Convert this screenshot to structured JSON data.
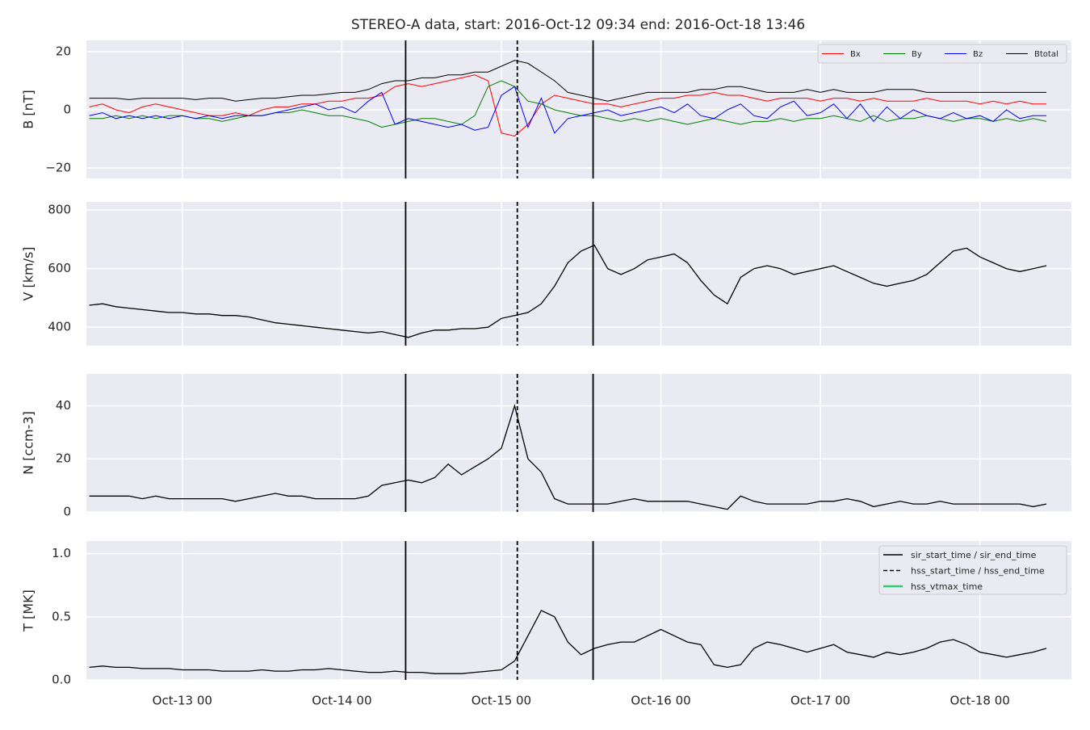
{
  "chart_data": [
    {
      "type": "line",
      "title": "STEREO-A data, start: 2016-Oct-12 09:34  end: 2016-Oct-18 13:46",
      "ylabel": "B [nT]",
      "ylim": [
        -23.6,
        23.9
      ],
      "yticks": [
        {
          "value": -20,
          "label": "−20"
        },
        0,
        20
      ],
      "grid": true,
      "legend": "upper right",
      "series": [
        {
          "name": "Bx",
          "color": "#ff0000",
          "values": [
            1,
            2,
            0,
            -1,
            1,
            2,
            1,
            0,
            -1,
            -2,
            -2,
            -1,
            -2,
            0,
            1,
            1,
            2,
            2,
            3,
            3,
            4,
            4,
            5,
            8,
            9,
            8,
            9,
            10,
            11,
            12,
            10,
            -8,
            -9,
            -5,
            2,
            5,
            4,
            3,
            2,
            2,
            1,
            2,
            3,
            4,
            4,
            5,
            5,
            6,
            5,
            5,
            4,
            3,
            4,
            4,
            4,
            3,
            4,
            4,
            3,
            4,
            3,
            3,
            3,
            4,
            3,
            3,
            3,
            2,
            3,
            2,
            3,
            2,
            2
          ]
        },
        {
          "name": "By",
          "color": "#008000",
          "values": [
            -3,
            -3,
            -2,
            -3,
            -2,
            -3,
            -2,
            -2,
            -3,
            -3,
            -4,
            -3,
            -2,
            -2,
            -1,
            -1,
            0,
            -1,
            -2,
            -2,
            -3,
            -4,
            -6,
            -5,
            -4,
            -3,
            -3,
            -4,
            -5,
            -2,
            8,
            10,
            8,
            3,
            2,
            0,
            -1,
            -2,
            -2,
            -3,
            -4,
            -3,
            -4,
            -3,
            -4,
            -5,
            -4,
            -3,
            -4,
            -5,
            -4,
            -4,
            -3,
            -4,
            -3,
            -3,
            -2,
            -3,
            -4,
            -2,
            -4,
            -3,
            -3,
            -2,
            -3,
            -4,
            -3,
            -3,
            -4,
            -3,
            -4,
            -3,
            -4
          ]
        },
        {
          "name": "Bz",
          "color": "#0000ff",
          "values": [
            -2,
            -1,
            -3,
            -2,
            -3,
            -2,
            -3,
            -2,
            -3,
            -2,
            -3,
            -2,
            -2,
            -2,
            -1,
            0,
            1,
            2,
            0,
            1,
            -1,
            3,
            6,
            -5,
            -3,
            -4,
            -5,
            -6,
            -5,
            -7,
            -6,
            5,
            8,
            -6,
            4,
            -8,
            -3,
            -2,
            -1,
            0,
            -2,
            -1,
            0,
            1,
            -1,
            2,
            -2,
            -3,
            0,
            2,
            -2,
            -3,
            1,
            3,
            -2,
            -1,
            2,
            -3,
            2,
            -4,
            1,
            -3,
            0,
            -2,
            -3,
            -1,
            -3,
            -2,
            -4,
            0,
            -3,
            -2,
            -2
          ]
        },
        {
          "name": "Btotal",
          "color": "#000000",
          "values": [
            4,
            4,
            4,
            3.5,
            4,
            4,
            4,
            4,
            3.5,
            4,
            4,
            3,
            3.5,
            4,
            4,
            4.5,
            5,
            5,
            5.5,
            6,
            6,
            7,
            9,
            10,
            10,
            11,
            11,
            12,
            12,
            13,
            13,
            15,
            17,
            16,
            13,
            10,
            6,
            5,
            4,
            3,
            4,
            5,
            6,
            6,
            6,
            6,
            7,
            7,
            8,
            8,
            7,
            6,
            6,
            6,
            7,
            6,
            7,
            6,
            6,
            6,
            7,
            7,
            7,
            6,
            6,
            6,
            6,
            6,
            6,
            6,
            6,
            6,
            6
          ]
        }
      ]
    },
    {
      "type": "line",
      "ylabel": "V [km/s]",
      "ylim": [
        337,
        828
      ],
      "yticks": [
        400,
        600,
        800
      ],
      "grid": true,
      "color": "#000000",
      "values": [
        475,
        480,
        470,
        465,
        460,
        455,
        450,
        450,
        445,
        445,
        440,
        440,
        435,
        425,
        415,
        410,
        405,
        400,
        395,
        390,
        385,
        380,
        385,
        375,
        365,
        380,
        390,
        390,
        395,
        395,
        400,
        430,
        440,
        450,
        480,
        540,
        620,
        660,
        680,
        600,
        580,
        600,
        630,
        640,
        650,
        620,
        560,
        510,
        480,
        570,
        600,
        610,
        600,
        580,
        590,
        600,
        610,
        590,
        570,
        550,
        540,
        550,
        560,
        580,
        620,
        660,
        670,
        640,
        620,
        600,
        590,
        600,
        610
      ]
    },
    {
      "type": "line",
      "ylabel": "N [ccm-3]",
      "ylim": [
        0,
        52
      ],
      "yticks": [
        0,
        20,
        40
      ],
      "grid": true,
      "color": "#000000",
      "values": [
        6,
        6,
        6,
        6,
        5,
        6,
        5,
        5,
        5,
        5,
        5,
        4,
        5,
        6,
        7,
        6,
        6,
        5,
        5,
        5,
        5,
        6,
        10,
        11,
        12,
        11,
        13,
        18,
        14,
        17,
        20,
        24,
        40,
        20,
        15,
        5,
        3,
        3,
        3,
        3,
        4,
        5,
        4,
        4,
        4,
        4,
        3,
        2,
        1,
        6,
        4,
        3,
        3,
        3,
        3,
        4,
        4,
        5,
        4,
        2,
        3,
        4,
        3,
        3,
        4,
        3,
        3,
        3,
        3,
        3,
        3,
        2,
        3
      ]
    },
    {
      "type": "line",
      "ylabel": "T [MK]",
      "ylim": [
        0,
        1.1
      ],
      "yticks": [
        {
          "value": 0,
          "label": "0.0"
        },
        0.5,
        {
          "value": 1,
          "label": "1.0"
        }
      ],
      "grid": true,
      "color": "#000000",
      "legend": "upper right",
      "values": [
        0.1,
        0.11,
        0.1,
        0.1,
        0.09,
        0.09,
        0.09,
        0.08,
        0.08,
        0.08,
        0.07,
        0.07,
        0.07,
        0.08,
        0.07,
        0.07,
        0.08,
        0.08,
        0.09,
        0.08,
        0.07,
        0.06,
        0.06,
        0.07,
        0.06,
        0.06,
        0.05,
        0.05,
        0.05,
        0.06,
        0.07,
        0.08,
        0.15,
        0.35,
        0.55,
        0.5,
        0.3,
        0.2,
        0.25,
        0.28,
        0.3,
        0.3,
        0.35,
        0.4,
        0.35,
        0.3,
        0.28,
        0.12,
        0.1,
        0.12,
        0.25,
        0.3,
        0.28,
        0.25,
        0.22,
        0.25,
        0.28,
        0.22,
        0.2,
        0.18,
        0.22,
        0.2,
        0.22,
        0.25,
        0.3,
        0.32,
        0.28,
        0.22,
        0.2,
        0.18,
        0.2,
        0.22,
        0.25
      ],
      "xlim": [
        "2016-10-12T09:34",
        "2016-10-18T13:46"
      ],
      "xticks": [
        {
          "value": "2016-10-13T00:00",
          "label": "Oct-13 00"
        },
        {
          "value": "2016-10-14T00:00",
          "label": "Oct-14 00"
        },
        {
          "value": "2016-10-15T00:00",
          "label": "Oct-15 00"
        },
        {
          "value": "2016-10-16T00:00",
          "label": "Oct-16 00"
        },
        {
          "value": "2016-10-17T00:00",
          "label": "Oct-17 00"
        },
        {
          "value": "2016-10-18T00:00",
          "label": "Oct-18 00"
        }
      ],
      "x": [
        "2016-10-12T10:00",
        "2016-10-12T12:00",
        "2016-10-12T14:00",
        "2016-10-12T16:00",
        "2016-10-12T18:00",
        "2016-10-12T20:00",
        "2016-10-12T22:00",
        "2016-10-13T00:00",
        "2016-10-13T02:00",
        "2016-10-13T04:00",
        "2016-10-13T06:00",
        "2016-10-13T08:00",
        "2016-10-13T10:00",
        "2016-10-13T12:00",
        "2016-10-13T14:00",
        "2016-10-13T16:00",
        "2016-10-13T18:00",
        "2016-10-13T20:00",
        "2016-10-13T22:00",
        "2016-10-14T00:00",
        "2016-10-14T02:00",
        "2016-10-14T04:00",
        "2016-10-14T06:00",
        "2016-10-14T08:00",
        "2016-10-14T10:00",
        "2016-10-14T12:00",
        "2016-10-14T14:00",
        "2016-10-14T16:00",
        "2016-10-14T18:00",
        "2016-10-14T20:00",
        "2016-10-14T22:00",
        "2016-10-15T00:00",
        "2016-10-15T02:00",
        "2016-10-15T04:00",
        "2016-10-15T06:00",
        "2016-10-15T08:00",
        "2016-10-15T10:00",
        "2016-10-15T12:00",
        "2016-10-15T14:00",
        "2016-10-15T16:00",
        "2016-10-15T18:00",
        "2016-10-15T20:00",
        "2016-10-15T22:00",
        "2016-10-16T00:00",
        "2016-10-16T02:00",
        "2016-10-16T04:00",
        "2016-10-16T06:00",
        "2016-10-16T08:00",
        "2016-10-16T10:00",
        "2016-10-16T12:00",
        "2016-10-16T14:00",
        "2016-10-16T16:00",
        "2016-10-16T18:00",
        "2016-10-16T20:00",
        "2016-10-16T22:00",
        "2016-10-17T00:00",
        "2016-10-17T02:00",
        "2016-10-17T04:00",
        "2016-10-17T06:00",
        "2016-10-17T08:00",
        "2016-10-17T10:00",
        "2016-10-17T12:00",
        "2016-10-17T14:00",
        "2016-10-17T16:00",
        "2016-10-17T18:00",
        "2016-10-17T20:00",
        "2016-10-17T22:00",
        "2016-10-18T00:00",
        "2016-10-18T02:00",
        "2016-10-18T04:00",
        "2016-10-18T06:00",
        "2016-10-18T08:00",
        "2016-10-18T10:00"
      ],
      "events": [
        {
          "name": "sir_start_time / sir_end_time",
          "color": "#000000",
          "style": "solid",
          "times": [
            "2016-10-14T09:36",
            "2016-10-15T13:48"
          ]
        },
        {
          "name": "hss_start_time / hss_end_time",
          "color": "#000000",
          "style": "dashed",
          "times": [
            "2016-10-15T02:24"
          ]
        },
        {
          "name": "hss_vtmax_time",
          "color": "#2ecc71",
          "style": "solid",
          "times": []
        }
      ]
    }
  ]
}
